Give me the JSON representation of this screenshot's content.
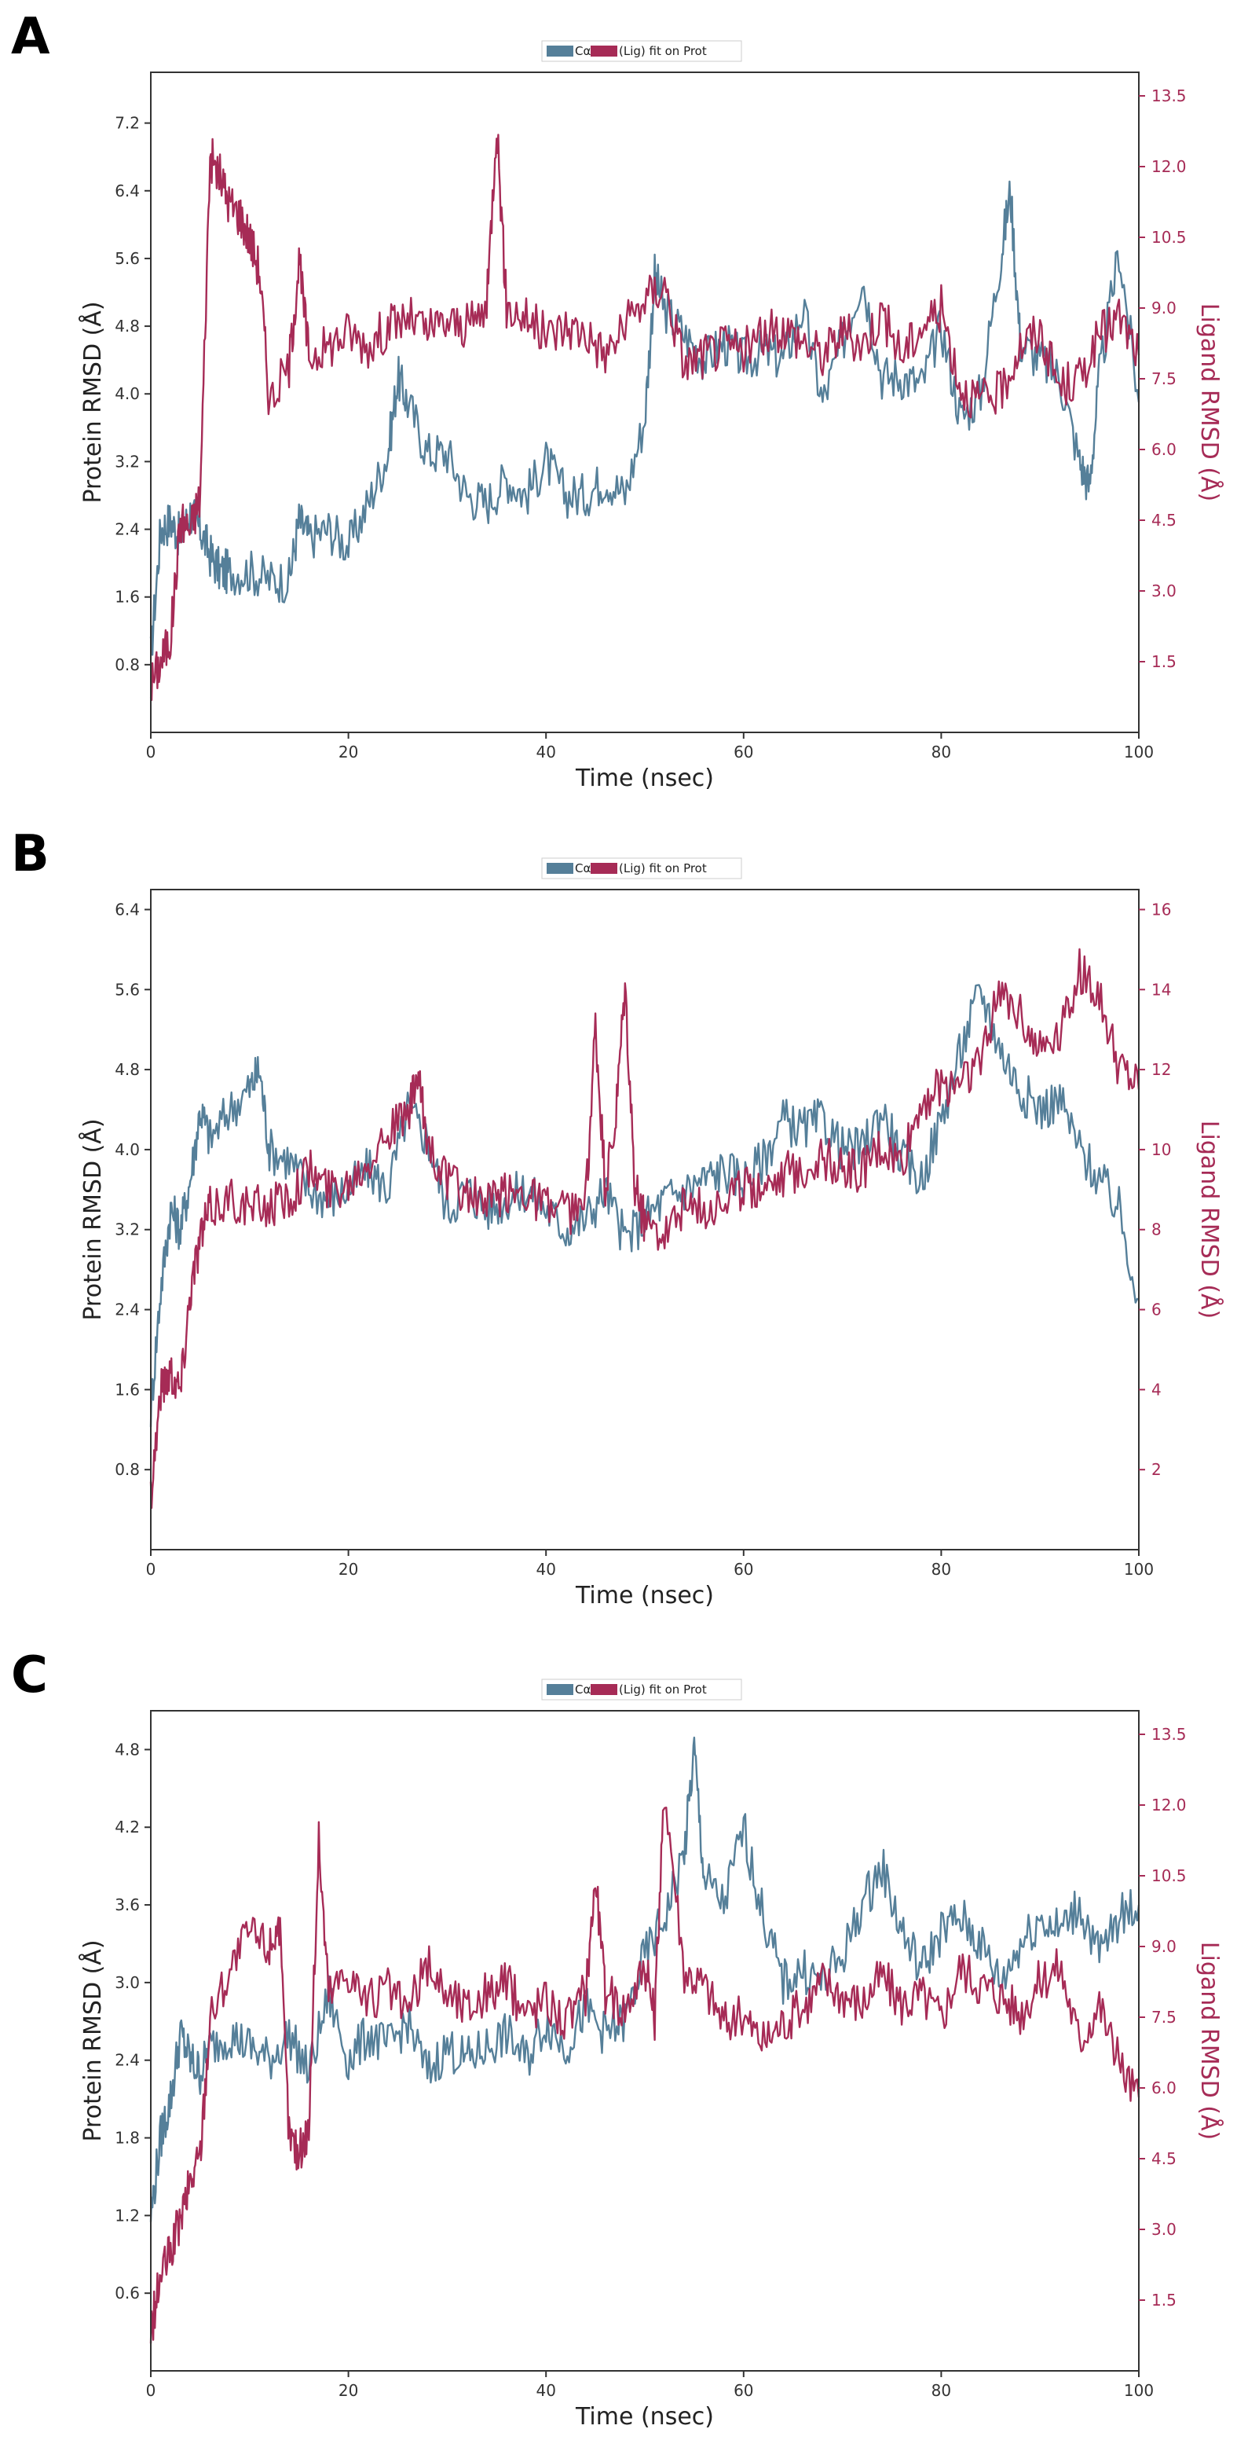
{
  "legend": {
    "protein": "Cα",
    "ligand": "(Lig) fit on Prot"
  },
  "colors": {
    "protein": "#557f99",
    "ligand": "#a62b56",
    "axis": "#333333"
  },
  "chart_data": [
    {
      "panel": "A",
      "type": "line",
      "xlabel": "Time (nsec)",
      "ylabel_left": "Protein RMSD (Å)",
      "ylabel_right": "Ligand RMSD (Å)",
      "xlim": [
        0,
        100
      ],
      "xticks": [
        0,
        20,
        40,
        60,
        80,
        100
      ],
      "ylim_left": [
        0,
        7.8
      ],
      "yticks_left": [
        "0.8",
        "1.6",
        "2.4",
        "3.2",
        "4.0",
        "4.8",
        "5.6",
        "6.4",
        "7.2"
      ],
      "ylim_right": [
        0,
        14
      ],
      "yticks_right": [
        "1.5",
        "3.0",
        "4.5",
        "6.0",
        "7.5",
        "9.0",
        "10.5",
        "12.0",
        "13.5"
      ],
      "series": [
        {
          "name": "Cα",
          "axis": "left",
          "x": [
            0,
            1,
            2,
            3,
            4,
            5,
            6,
            7,
            8,
            10,
            12,
            14,
            15,
            16,
            18,
            20,
            22,
            24,
            25,
            26,
            28,
            30,
            32,
            34,
            36,
            38,
            40,
            42,
            44,
            46,
            48,
            50,
            51,
            52,
            54,
            56,
            58,
            60,
            62,
            64,
            66,
            68,
            70,
            72,
            74,
            76,
            78,
            80,
            82,
            84,
            86,
            87,
            88,
            90,
            92,
            94,
            95,
            96,
            98,
            100
          ],
          "y": [
            0.9,
            2.4,
            2.5,
            2.3,
            2.6,
            2.4,
            2.1,
            1.9,
            1.9,
            1.9,
            1.8,
            1.8,
            2.5,
            2.3,
            2.4,
            2.2,
            2.7,
            3.3,
            4.2,
            3.9,
            3.3,
            3.3,
            2.8,
            2.7,
            3.0,
            2.8,
            3.2,
            2.8,
            2.8,
            3.0,
            2.8,
            3.7,
            5.4,
            5.0,
            4.7,
            4.4,
            4.6,
            4.4,
            4.5,
            4.4,
            5.0,
            3.9,
            4.6,
            5.4,
            4.2,
            4.2,
            4.1,
            4.8,
            3.7,
            4.0,
            5.6,
            6.4,
            4.6,
            4.4,
            4.2,
            3.2,
            2.9,
            4.2,
            5.7,
            3.9
          ]
        },
        {
          "name": "(Lig) fit on Prot",
          "axis": "right",
          "x": [
            0,
            1,
            2,
            3,
            4,
            5,
            6,
            7,
            8,
            9,
            10,
            11,
            12,
            14,
            15,
            16,
            18,
            20,
            22,
            24,
            26,
            28,
            30,
            32,
            34,
            35,
            36,
            38,
            40,
            42,
            44,
            46,
            48,
            50,
            52,
            54,
            56,
            58,
            60,
            62,
            64,
            66,
            68,
            70,
            72,
            74,
            76,
            78,
            80,
            82,
            84,
            86,
            88,
            90,
            92,
            94,
            96,
            98,
            100
          ],
          "y": [
            1.0,
            1.5,
            2.0,
            4.5,
            4.3,
            5.0,
            12.2,
            11.8,
            11.2,
            11.0,
            10.5,
            9.8,
            7.0,
            7.8,
            10.0,
            8.0,
            8.2,
            8.5,
            8.2,
            8.6,
            8.8,
            8.5,
            8.7,
            8.6,
            9.0,
            13.0,
            9.0,
            8.8,
            8.4,
            8.6,
            8.5,
            8.0,
            8.6,
            9.2,
            9.5,
            7.8,
            8.0,
            8.2,
            8.1,
            8.4,
            8.6,
            8.3,
            8.0,
            8.5,
            8.2,
            8.9,
            8.0,
            8.6,
            9.0,
            7.3,
            7.0,
            7.2,
            8.2,
            8.5,
            7.3,
            7.5,
            8.4,
            8.8,
            8.0
          ]
        }
      ]
    },
    {
      "panel": "B",
      "type": "line",
      "xlabel": "Time (nsec)",
      "ylabel_left": "Protein RMSD (Å)",
      "ylabel_right": "Ligand RMSD (Å)",
      "xlim": [
        0,
        100
      ],
      "xticks": [
        0,
        20,
        40,
        60,
        80,
        100
      ],
      "ylim_left": [
        0,
        6.6
      ],
      "yticks_left": [
        "0.8",
        "1.6",
        "2.4",
        "3.2",
        "4.0",
        "4.8",
        "5.6",
        "6.4"
      ],
      "ylim_right": [
        0,
        16.5
      ],
      "yticks_right": [
        "2",
        "4",
        "6",
        "8",
        "10",
        "12",
        "14",
        "16"
      ],
      "series": [
        {
          "name": "Cα",
          "axis": "left",
          "x": [
            0,
            1,
            2,
            3,
            4,
            5,
            6,
            8,
            10,
            11,
            12,
            14,
            16,
            18,
            20,
            22,
            24,
            26,
            28,
            30,
            32,
            34,
            36,
            38,
            40,
            42,
            44,
            46,
            48,
            50,
            52,
            54,
            56,
            58,
            60,
            62,
            64,
            66,
            68,
            70,
            72,
            74,
            76,
            78,
            80,
            82,
            84,
            86,
            88,
            90,
            92,
            94,
            96,
            98,
            100
          ],
          "y": [
            1.4,
            2.6,
            3.4,
            3.2,
            3.7,
            4.4,
            4.1,
            4.4,
            4.6,
            4.8,
            4.0,
            3.9,
            3.6,
            3.5,
            3.6,
            3.8,
            3.6,
            4.4,
            4.1,
            3.4,
            3.6,
            3.4,
            3.5,
            3.6,
            3.4,
            3.2,
            3.3,
            3.6,
            3.1,
            3.3,
            3.5,
            3.6,
            3.7,
            3.8,
            3.7,
            3.9,
            4.3,
            4.2,
            4.3,
            4.0,
            4.0,
            4.4,
            3.9,
            3.7,
            4.3,
            5.0,
            5.6,
            5.0,
            4.6,
            4.4,
            4.5,
            4.0,
            3.7,
            3.4,
            2.5
          ]
        },
        {
          "name": "(Lig) fit on Prot",
          "axis": "right",
          "x": [
            0,
            1,
            2,
            3,
            4,
            5,
            6,
            8,
            10,
            12,
            14,
            16,
            18,
            20,
            22,
            24,
            26,
            27,
            28,
            30,
            32,
            34,
            36,
            38,
            40,
            42,
            44,
            45,
            46,
            47,
            48,
            49,
            50,
            52,
            54,
            56,
            58,
            60,
            62,
            64,
            66,
            68,
            70,
            72,
            74,
            76,
            78,
            80,
            82,
            84,
            86,
            88,
            90,
            92,
            94,
            96,
            98,
            100
          ],
          "y": [
            1.4,
            4.0,
            4.5,
            4.0,
            6.5,
            7.8,
            8.5,
            8.8,
            8.5,
            8.6,
            8.8,
            9.5,
            9.0,
            9.2,
            9.8,
            10.5,
            10.8,
            11.8,
            10.2,
            9.2,
            8.9,
            8.6,
            8.9,
            9.0,
            8.6,
            8.4,
            8.6,
            13.0,
            9.0,
            10.5,
            14.0,
            9.0,
            8.2,
            8.0,
            8.6,
            8.5,
            8.8,
            9.0,
            9.2,
            9.4,
            9.5,
            9.8,
            9.5,
            9.5,
            10.0,
            9.6,
            11.2,
            11.5,
            11.8,
            12.2,
            14.0,
            13.5,
            12.5,
            13.0,
            14.5,
            13.8,
            12.0,
            11.5
          ]
        }
      ]
    },
    {
      "panel": "C",
      "type": "line",
      "xlabel": "Time (nsec)",
      "ylabel_left": "Protein RMSD (Å)",
      "ylabel_right": "Ligand RMSD (Å)",
      "xlim": [
        0,
        100
      ],
      "xticks": [
        0,
        20,
        40,
        60,
        80,
        100
      ],
      "ylim_left": [
        0,
        5.1
      ],
      "yticks_left": [
        "0.6",
        "1.2",
        "1.8",
        "2.4",
        "3.0",
        "3.6",
        "4.2",
        "4.8"
      ],
      "ylim_right": [
        0,
        14
      ],
      "yticks_right": [
        "1.5",
        "3.0",
        "4.5",
        "6.0",
        "7.5",
        "9.0",
        "10.5",
        "12.0",
        "13.5"
      ],
      "series": [
        {
          "name": "Cα",
          "axis": "left",
          "x": [
            0,
            1,
            2,
            3,
            4,
            5,
            6,
            8,
            10,
            12,
            14,
            16,
            18,
            20,
            22,
            24,
            26,
            28,
            30,
            32,
            34,
            36,
            38,
            40,
            42,
            44,
            46,
            48,
            50,
            52,
            54,
            55,
            56,
            58,
            60,
            62,
            64,
            66,
            68,
            70,
            72,
            74,
            76,
            78,
            80,
            82,
            84,
            86,
            88,
            90,
            92,
            94,
            96,
            98,
            100
          ],
          "y": [
            1.2,
            1.8,
            2.1,
            2.6,
            2.4,
            2.3,
            2.5,
            2.6,
            2.5,
            2.4,
            2.6,
            2.3,
            2.9,
            2.4,
            2.6,
            2.5,
            2.7,
            2.3,
            2.5,
            2.4,
            2.5,
            2.6,
            2.4,
            2.7,
            2.5,
            2.8,
            2.6,
            2.7,
            3.2,
            3.5,
            4.0,
            4.8,
            3.8,
            3.6,
            4.2,
            3.5,
            3.0,
            3.1,
            3.0,
            3.2,
            3.6,
            3.9,
            3.4,
            3.1,
            3.4,
            3.5,
            3.3,
            3.0,
            3.3,
            3.5,
            3.4,
            3.6,
            3.2,
            3.5,
            3.6
          ]
        },
        {
          "name": "(Lig) fit on Prot",
          "axis": "right",
          "x": [
            0,
            1,
            2,
            3,
            4,
            5,
            6,
            8,
            10,
            12,
            13,
            14,
            15,
            16,
            17,
            18,
            20,
            22,
            24,
            26,
            28,
            30,
            32,
            34,
            36,
            38,
            40,
            42,
            44,
            45,
            46,
            48,
            50,
            51,
            52,
            54,
            56,
            58,
            60,
            62,
            64,
            66,
            68,
            70,
            72,
            74,
            76,
            78,
            80,
            82,
            84,
            86,
            88,
            90,
            92,
            94,
            96,
            98,
            100
          ],
          "y": [
            0.8,
            2.0,
            2.5,
            3.2,
            4.0,
            4.6,
            7.5,
            8.5,
            9.3,
            9.0,
            9.5,
            5.0,
            4.6,
            5.2,
            11.2,
            8.0,
            8.5,
            7.8,
            8.1,
            7.6,
            8.6,
            8.0,
            7.7,
            8.0,
            8.2,
            7.6,
            7.9,
            7.4,
            8.0,
            10.5,
            8.0,
            7.7,
            8.6,
            7.5,
            12.4,
            8.5,
            8.2,
            7.4,
            7.5,
            7.0,
            7.4,
            7.7,
            8.3,
            8.0,
            7.8,
            8.4,
            7.8,
            8.0,
            7.5,
            8.6,
            8.2,
            8.0,
            7.6,
            8.3,
            8.6,
            7.0,
            7.8,
            6.5,
            5.8
          ]
        }
      ]
    }
  ]
}
